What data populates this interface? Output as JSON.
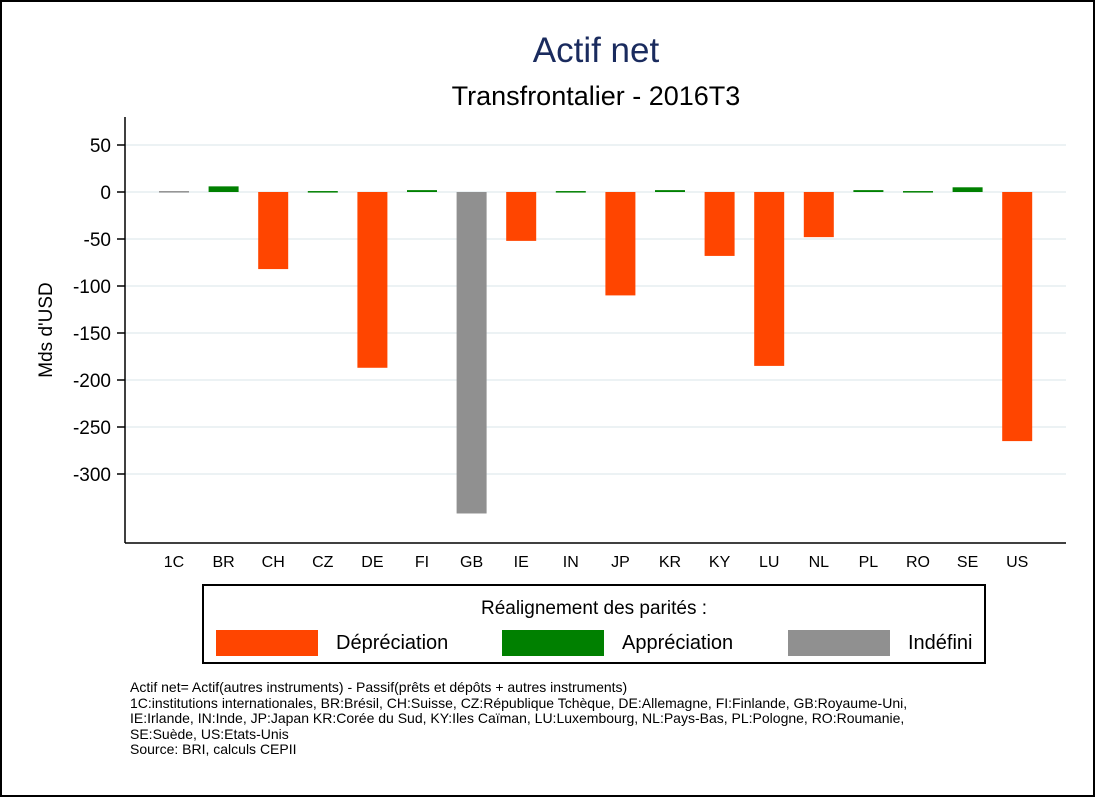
{
  "chart_data": {
    "type": "bar",
    "title": "Actif net",
    "subtitle": "Transfrontalier - 2016T3",
    "xlabel": "",
    "ylabel": "Mds d'USD",
    "ylim": [
      -365,
      80
    ],
    "yticks": [
      50,
      0,
      -50,
      -100,
      -150,
      -200,
      -250,
      -300
    ],
    "grid": true,
    "categories": [
      "1C",
      "BR",
      "CH",
      "CZ",
      "DE",
      "FI",
      "GB",
      "IE",
      "IN",
      "JP",
      "KR",
      "KY",
      "LU",
      "NL",
      "PL",
      "RO",
      "SE",
      "US"
    ],
    "values": [
      1,
      6,
      -82,
      1,
      -187,
      2,
      -342,
      -52,
      1,
      -110,
      2,
      -68,
      -185,
      -48,
      2,
      1,
      5,
      -265
    ],
    "groups": [
      "Indéfini",
      "Appréciation",
      "Dépréciation",
      "Appréciation",
      "Dépréciation",
      "Appréciation",
      "Indéfini",
      "Dépréciation",
      "Appréciation",
      "Dépréciation",
      "Appréciation",
      "Dépréciation",
      "Dépréciation",
      "Dépréciation",
      "Appréciation",
      "Appréciation",
      "Appréciation",
      "Dépréciation"
    ],
    "legend": {
      "title": "Réalignement des parités :",
      "position": "bottom",
      "entries": [
        {
          "label": "Dépréciation",
          "color": "#ff4500"
        },
        {
          "label": "Appréciation",
          "color": "#008000"
        },
        {
          "label": "Indéfini",
          "color": "#909090"
        }
      ]
    }
  },
  "colors": {
    "depreciation": "#ff4500",
    "appreciation": "#008000",
    "undefined": "#909090",
    "title": "#1a2b5e"
  },
  "notes": [
    "Actif net= Actif(autres instruments) - Passif(prêts et dépôts + autres instruments)",
    "1C:institutions internationales, BR:Brésil, CH:Suisse, CZ:République Tchèque, DE:Allemagne, FI:Finlande, GB:Royaume-Uni,",
    "IE:Irlande, IN:Inde, JP:Japan KR:Corée du Sud, KY:Iles Caïman, LU:Luxembourg, NL:Pays-Bas, PL:Pologne, RO:Roumanie,",
    "SE:Suède, US:Etats-Unis",
    "Source: BRI, calculs CEPII"
  ]
}
